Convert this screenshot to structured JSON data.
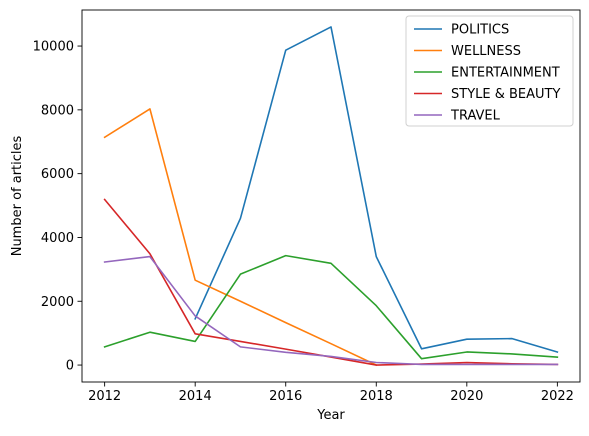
{
  "chart_data": {
    "type": "line",
    "xlabel": "Year",
    "ylabel": "Number of articles",
    "x": [
      2012,
      2013,
      2014,
      2015,
      2016,
      2017,
      2018,
      2019,
      2020,
      2021,
      2022
    ],
    "xlim": [
      2011.5,
      2022.5
    ],
    "ylim": [
      -531,
      11130
    ],
    "xticks": [
      2012,
      2014,
      2016,
      2018,
      2020,
      2022
    ],
    "yticks": [
      0,
      2000,
      4000,
      6000,
      8000,
      10000
    ],
    "grid": false,
    "legend_position": "top-right",
    "series": [
      {
        "name": "POLITICS",
        "color": "#1f77b4",
        "values": [
          null,
          null,
          1450,
          4600,
          9870,
          10600,
          3400,
          510,
          810,
          830,
          410
        ]
      },
      {
        "name": "WELLNESS",
        "color": "#ff7f0e",
        "values": [
          7140,
          8030,
          2660,
          2000,
          1330,
          670,
          0,
          null,
          null,
          null,
          null
        ]
      },
      {
        "name": "ENTERTAINMENT",
        "color": "#2ca02c",
        "values": [
          570,
          1030,
          740,
          2850,
          3430,
          3190,
          1860,
          200,
          410,
          350,
          250
        ]
      },
      {
        "name": "STYLE & BEAUTY",
        "color": "#d62728",
        "values": [
          5190,
          3490,
          980,
          740,
          500,
          250,
          0,
          30,
          80,
          40,
          20
        ]
      },
      {
        "name": "TRAVEL",
        "color": "#9467bd",
        "values": [
          3230,
          3400,
          1540,
          570,
          400,
          270,
          80,
          20,
          20,
          20,
          20
        ]
      }
    ]
  }
}
